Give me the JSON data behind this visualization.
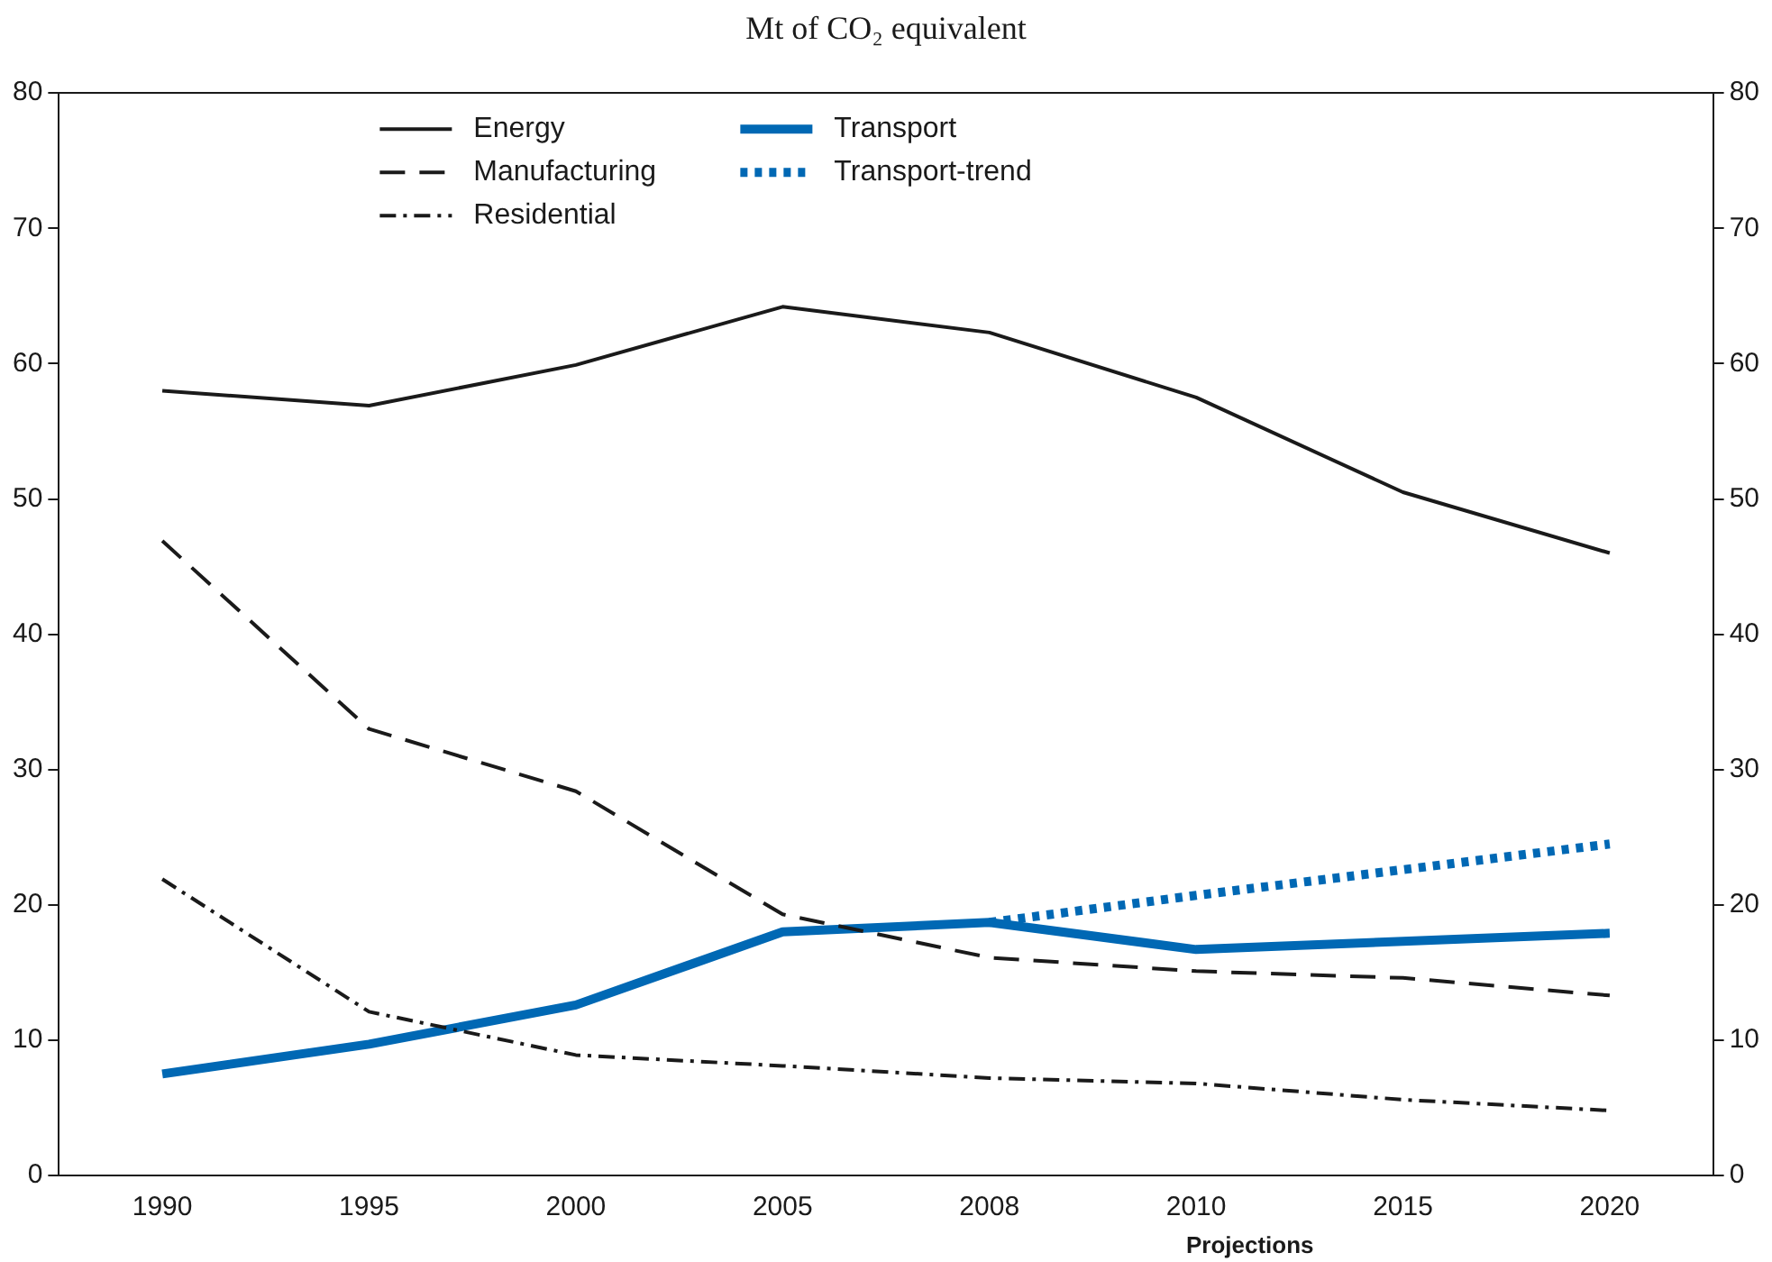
{
  "chart_data": {
    "type": "line",
    "subtitle": "Mt of CO₂ equivalent",
    "categories": [
      "1990",
      "1995",
      "2000",
      "2005",
      "2008",
      "2010",
      "2015",
      "2020"
    ],
    "series": [
      {
        "name": "Energy",
        "color": "#1a1a1a",
        "line_style": "solid",
        "values": [
          58,
          56.9,
          59.9,
          64.2,
          62.3,
          57.5,
          50.5,
          46
        ]
      },
      {
        "name": "Manufacturing",
        "color": "#1a1a1a",
        "line_style": "dashed",
        "values": [
          46.9,
          33,
          28.4,
          19.3,
          16.1,
          15.1,
          14.6,
          13.3
        ]
      },
      {
        "name": "Residential",
        "color": "#1a1a1a",
        "line_style": "dashdot",
        "values": [
          21.9,
          12.1,
          8.9,
          8.1,
          7.2,
          6.8,
          5.6,
          4.8
        ]
      },
      {
        "name": "Transport",
        "color": "#0068b4",
        "line_style": "solid",
        "values": [
          7.5,
          9.7,
          12.6,
          18,
          18.7,
          16.7,
          17.3,
          17.9
        ]
      },
      {
        "name": "Transport-trend",
        "color": "#0068b4",
        "line_style": "dotted",
        "values": [
          null,
          null,
          null,
          null,
          18.7,
          20.7,
          22.6,
          24.5
        ]
      }
    ],
    "ylim": [
      0,
      80
    ],
    "yticks": [
      0,
      10,
      20,
      30,
      40,
      50,
      60,
      70,
      80
    ],
    "y2lim": [
      0,
      80
    ],
    "y2ticks": [
      0,
      10,
      20,
      30,
      40,
      50,
      60,
      70,
      80
    ],
    "grid": false,
    "legend": "top",
    "marker": "none",
    "annotations": [
      "Projections"
    ]
  }
}
